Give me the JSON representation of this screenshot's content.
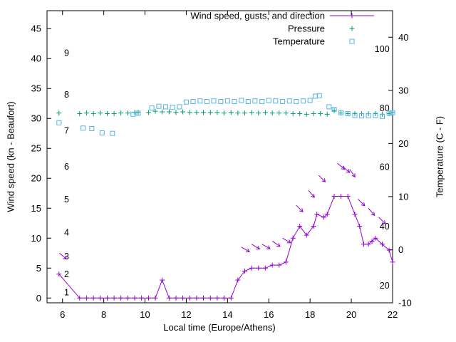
{
  "chart_data": {
    "type": "line",
    "title": "",
    "xlabel": "Local time (Europe/Athens)",
    "ylabel_left": "Wind speed (kn - Beaufort)",
    "ylabel_right": "Temperature (C - F)",
    "xlim": [
      5.25,
      22
    ],
    "x_ticks": [
      6,
      8,
      10,
      12,
      14,
      16,
      18,
      20,
      22
    ],
    "ylim_left": [
      -0.8,
      48
    ],
    "y_ticks_left": [
      0,
      5,
      10,
      15,
      20,
      25,
      30,
      35,
      40,
      45
    ],
    "ylim_right": [
      -10,
      45
    ],
    "y_ticks_right": [
      -10,
      0,
      10,
      20,
      30,
      40
    ],
    "grid": false,
    "legend_position": "top-right",
    "inside_left_labels": {
      "x": 6.2,
      "items": [
        {
          "label": "1",
          "kn": 1
        },
        {
          "label": "2",
          "kn": 4
        },
        {
          "label": "3",
          "kn": 7
        },
        {
          "label": "4",
          "kn": 11
        },
        {
          "label": "5",
          "kn": 16.5
        },
        {
          "label": "6",
          "kn": 22
        },
        {
          "label": "7",
          "kn": 28
        },
        {
          "label": "8",
          "kn": 34
        },
        {
          "label": "9",
          "kn": 41
        }
      ]
    },
    "inside_right_labels": {
      "x": 21.85,
      "items": [
        {
          "label": "20",
          "c": -6.7
        },
        {
          "label": "40",
          "c": 4.4
        },
        {
          "label": "60",
          "c": 15.6
        },
        {
          "label": "80",
          "c": 26.7
        },
        {
          "label": "100",
          "c": 37.8
        }
      ]
    },
    "series": [
      {
        "name": "Wind speed, gusts, and direction",
        "color": "#9400d3",
        "marker": "plus",
        "draw": "line+markers",
        "axis": "left",
        "points": [
          [
            5.83,
            4
          ],
          [
            6.83,
            0
          ],
          [
            7.17,
            0
          ],
          [
            7.5,
            0
          ],
          [
            7.83,
            0
          ],
          [
            8.17,
            0
          ],
          [
            8.5,
            0
          ],
          [
            8.83,
            0
          ],
          [
            9.17,
            0
          ],
          [
            9.5,
            0
          ],
          [
            9.83,
            0
          ],
          [
            10.17,
            0
          ],
          [
            10.5,
            0
          ],
          [
            10.83,
            3
          ],
          [
            11.17,
            0
          ],
          [
            11.5,
            0
          ],
          [
            11.83,
            0
          ],
          [
            12.17,
            0
          ],
          [
            12.5,
            0
          ],
          [
            12.83,
            0
          ],
          [
            13.17,
            0
          ],
          [
            13.5,
            0
          ],
          [
            13.83,
            0
          ],
          [
            14.17,
            0
          ],
          [
            14.5,
            3
          ],
          [
            14.83,
            4.5
          ],
          [
            15.17,
            5
          ],
          [
            15.5,
            5
          ],
          [
            15.83,
            5
          ],
          [
            16.17,
            5.5
          ],
          [
            16.5,
            5.5
          ],
          [
            16.83,
            6
          ],
          [
            17.17,
            10
          ],
          [
            17.5,
            12
          ],
          [
            17.83,
            10.5
          ],
          [
            18.17,
            12
          ],
          [
            18.33,
            14
          ],
          [
            18.67,
            13.5
          ],
          [
            18.83,
            14
          ],
          [
            19.17,
            17
          ],
          [
            19.5,
            17
          ],
          [
            19.83,
            17
          ],
          [
            20.17,
            14
          ],
          [
            20.4,
            12
          ],
          [
            20.6,
            9
          ],
          [
            20.83,
            9
          ],
          [
            21,
            9.5
          ],
          [
            21.17,
            10
          ],
          [
            21.5,
            9
          ],
          [
            21.83,
            8
          ],
          [
            22,
            6
          ]
        ]
      },
      {
        "name": "Pressure",
        "color": "#009e73",
        "marker": "plus",
        "draw": "markers",
        "axis": "left",
        "note": "plotted against hidden pressure scale; y given in left-axis plot units",
        "points": [
          [
            5.83,
            30.9
          ],
          [
            6.83,
            30.8
          ],
          [
            7.17,
            30.9
          ],
          [
            7.5,
            30.8
          ],
          [
            7.83,
            30.9
          ],
          [
            8.17,
            30.8
          ],
          [
            8.5,
            30.8
          ],
          [
            8.83,
            30.9
          ],
          [
            9.17,
            30.9
          ],
          [
            9.5,
            31
          ],
          [
            9.67,
            31
          ],
          [
            10.17,
            31
          ],
          [
            10.5,
            31.2
          ],
          [
            10.83,
            31.1
          ],
          [
            11.17,
            31.1
          ],
          [
            11.5,
            31
          ],
          [
            11.83,
            31.1
          ],
          [
            12.17,
            31
          ],
          [
            12.5,
            31
          ],
          [
            12.83,
            31
          ],
          [
            13.17,
            31
          ],
          [
            13.5,
            31
          ],
          [
            13.83,
            30.9
          ],
          [
            14.17,
            31
          ],
          [
            14.5,
            30.9
          ],
          [
            14.83,
            30.9
          ],
          [
            15.17,
            31
          ],
          [
            15.5,
            30.9
          ],
          [
            15.83,
            31
          ],
          [
            16.17,
            30.9
          ],
          [
            16.5,
            30.9
          ],
          [
            16.83,
            30.9
          ],
          [
            17.17,
            30.8
          ],
          [
            17.5,
            30.8
          ],
          [
            17.83,
            30.7
          ],
          [
            18.17,
            30.8
          ],
          [
            18.5,
            30.8
          ],
          [
            18.83,
            30.7
          ],
          [
            19.17,
            31.3
          ],
          [
            19.5,
            30.9
          ],
          [
            19.83,
            30.8
          ],
          [
            20.17,
            30.8
          ],
          [
            20.5,
            30.8
          ],
          [
            20.83,
            30.8
          ],
          [
            21.17,
            30.8
          ],
          [
            21.5,
            30.7
          ],
          [
            21.83,
            30.8
          ],
          [
            22,
            31
          ]
        ]
      },
      {
        "name": "Temperature",
        "color": "#56b4e9",
        "marker": "open-square",
        "draw": "markers",
        "axis": "right",
        "points": [
          [
            5.83,
            23.9
          ],
          [
            7,
            22.9
          ],
          [
            7.42,
            22.8
          ],
          [
            7.92,
            22
          ],
          [
            8.42,
            21.9
          ],
          [
            9.42,
            25.5
          ],
          [
            9.67,
            25.7
          ],
          [
            10.33,
            26.7
          ],
          [
            10.67,
            27
          ],
          [
            11,
            26.9
          ],
          [
            11.33,
            26.8
          ],
          [
            11.67,
            26.9
          ],
          [
            12,
            27.8
          ],
          [
            12.33,
            27.9
          ],
          [
            12.67,
            28
          ],
          [
            13,
            27.9
          ],
          [
            13.33,
            28
          ],
          [
            13.67,
            27.9
          ],
          [
            14,
            28
          ],
          [
            14.33,
            27.9
          ],
          [
            14.67,
            28.1
          ],
          [
            15,
            27.9
          ],
          [
            15.33,
            28
          ],
          [
            15.67,
            27.9
          ],
          [
            16,
            28.1
          ],
          [
            16.33,
            28
          ],
          [
            16.67,
            27.9
          ],
          [
            17,
            28
          ],
          [
            17.33,
            27.9
          ],
          [
            17.67,
            28
          ],
          [
            18,
            28.1
          ],
          [
            18.25,
            28.9
          ],
          [
            18.45,
            29
          ],
          [
            18.92,
            26.9
          ],
          [
            19.17,
            26.4
          ],
          [
            19.5,
            25.8
          ],
          [
            19.83,
            25.6
          ],
          [
            20.17,
            25.3
          ],
          [
            20.5,
            25.2
          ],
          [
            20.83,
            25.2
          ],
          [
            21.17,
            25.3
          ],
          [
            21.5,
            25.1
          ],
          [
            21.83,
            25.7
          ],
          [
            22,
            25.8
          ]
        ]
      }
    ],
    "wind_direction_arrows": {
      "color": "#9400d3",
      "note": "x, y in left-axis units, screen angle in degrees below horizontal (pointing down-right)",
      "points": [
        [
          5.85,
          7.5,
          40
        ],
        [
          14.67,
          8.5,
          30
        ],
        [
          15.17,
          9,
          32
        ],
        [
          15.67,
          9,
          30
        ],
        [
          16.17,
          9.5,
          34
        ],
        [
          16.67,
          10,
          30
        ],
        [
          17.33,
          15.5,
          45
        ],
        [
          17.92,
          18,
          50
        ],
        [
          18.42,
          20.5,
          45
        ],
        [
          19.33,
          22.5,
          40
        ],
        [
          19.58,
          22,
          42
        ],
        [
          19.92,
          21.5,
          55
        ],
        [
          20.33,
          16.5,
          45
        ],
        [
          20.83,
          15,
          50
        ],
        [
          21.33,
          13.5,
          45
        ]
      ]
    }
  }
}
